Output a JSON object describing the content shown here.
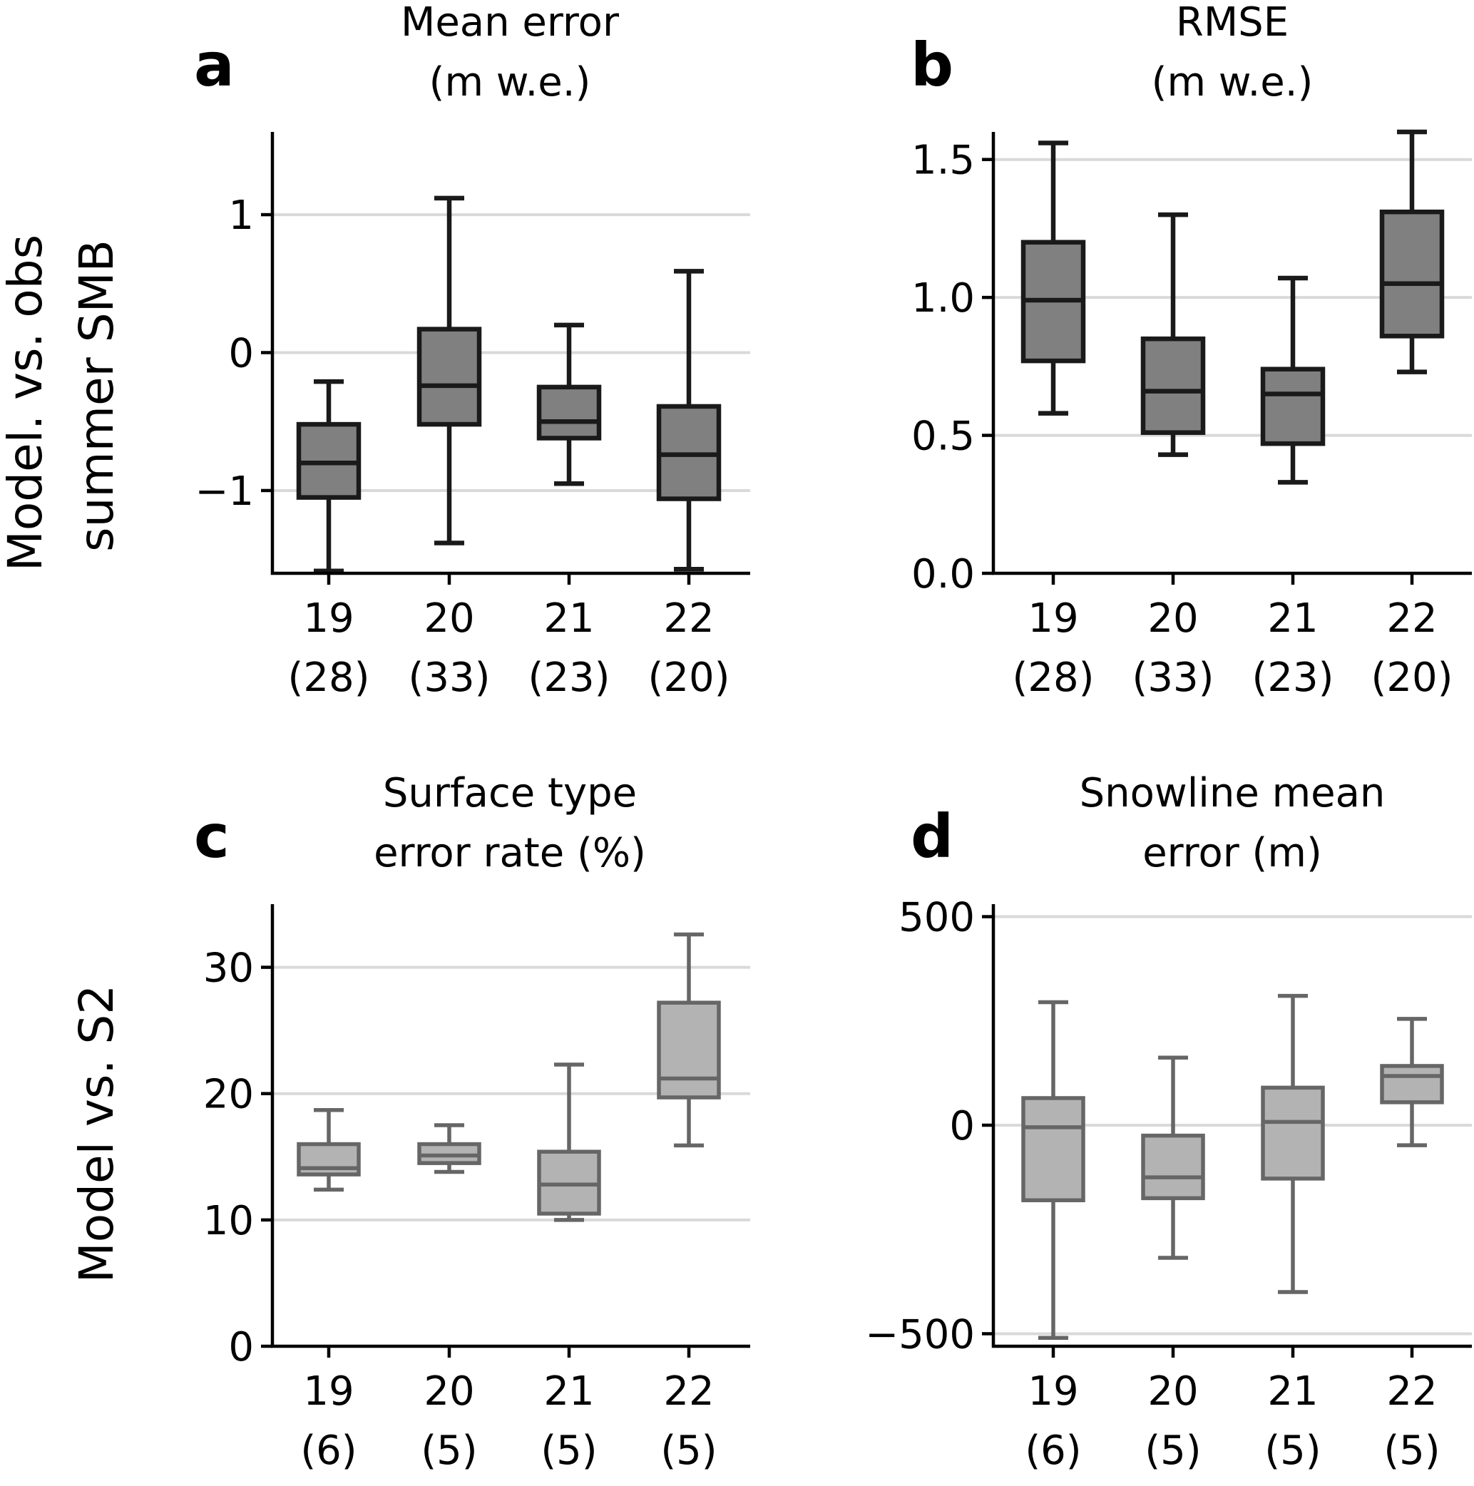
{
  "row_labels": {
    "top": [
      "Model. vs. obs",
      "summer SMB"
    ],
    "bottom": [
      "Model vs. S2"
    ]
  },
  "chart_data": [
    {
      "type": "box",
      "panel": "a",
      "title": [
        "Mean error",
        "(m w.e.)"
      ],
      "categories": [
        "19",
        "20",
        "21",
        "22"
      ],
      "counts": [
        "(28)",
        "(33)",
        "(23)",
        "(20)"
      ],
      "ylim": [
        -1.6,
        1.6
      ],
      "yticks": [
        -1,
        0,
        1
      ],
      "yticklabels": [
        "−1",
        "0",
        "1"
      ],
      "grid": "horizontal",
      "color": "#808080",
      "edge_color": "#1a1a1a",
      "boxes": [
        {
          "whisker_low": -1.6,
          "q1": -1.05,
          "median": -0.8,
          "q3": -0.52,
          "whisker_high": -0.21
        },
        {
          "whisker_low": -1.38,
          "q1": -0.52,
          "median": -0.24,
          "q3": 0.17,
          "whisker_high": 1.12
        },
        {
          "whisker_low": -0.95,
          "q1": -0.62,
          "median": -0.5,
          "q3": -0.25,
          "whisker_high": 0.2
        },
        {
          "whisker_low": -1.57,
          "q1": -1.06,
          "median": -0.74,
          "q3": -0.39,
          "whisker_high": 0.59
        }
      ]
    },
    {
      "type": "box",
      "panel": "b",
      "title": [
        "RMSE",
        "(m w.e.)"
      ],
      "categories": [
        "19",
        "20",
        "21",
        "22"
      ],
      "counts": [
        "(28)",
        "(33)",
        "(23)",
        "(20)"
      ],
      "ylim": [
        0,
        1.6
      ],
      "yticks": [
        0,
        0.5,
        1.0,
        1.5
      ],
      "yticklabels": [
        "0.0",
        "0.5",
        "1.0",
        "1.5"
      ],
      "grid": "horizontal",
      "color": "#808080",
      "edge_color": "#1a1a1a",
      "boxes": [
        {
          "whisker_low": 0.58,
          "q1": 0.77,
          "median": 0.99,
          "q3": 1.2,
          "whisker_high": 1.56
        },
        {
          "whisker_low": 0.43,
          "q1": 0.51,
          "median": 0.66,
          "q3": 0.85,
          "whisker_high": 1.3
        },
        {
          "whisker_low": 0.33,
          "q1": 0.47,
          "median": 0.65,
          "q3": 0.74,
          "whisker_high": 1.07
        },
        {
          "whisker_low": 0.73,
          "q1": 0.86,
          "median": 1.05,
          "q3": 1.31,
          "whisker_high": 1.6
        }
      ]
    },
    {
      "type": "box",
      "panel": "c",
      "title": [
        "Surface type",
        "error rate (%)"
      ],
      "categories": [
        "19",
        "20",
        "21",
        "22"
      ],
      "counts": [
        "(6)",
        "(5)",
        "(5)",
        "(5)"
      ],
      "ylim": [
        0,
        35
      ],
      "yticks": [
        0,
        10,
        20,
        30
      ],
      "yticklabels": [
        "0",
        "10",
        "20",
        "30"
      ],
      "grid": "horizontal",
      "color": "#b3b3b3",
      "edge_color": "#666666",
      "boxes": [
        {
          "whisker_low": 12.4,
          "q1": 13.6,
          "median": 14.1,
          "q3": 16.0,
          "whisker_high": 18.7
        },
        {
          "whisker_low": 13.8,
          "q1": 14.5,
          "median": 15.1,
          "q3": 16.0,
          "whisker_high": 17.5
        },
        {
          "whisker_low": 10.0,
          "q1": 10.5,
          "median": 12.8,
          "q3": 15.4,
          "whisker_high": 22.3
        },
        {
          "whisker_low": 15.9,
          "q1": 19.7,
          "median": 21.2,
          "q3": 27.2,
          "whisker_high": 32.6
        }
      ]
    },
    {
      "type": "box",
      "panel": "d",
      "title": [
        "Snowline mean",
        "error (m)"
      ],
      "categories": [
        "19",
        "20",
        "21",
        "22"
      ],
      "counts": [
        "(6)",
        "(5)",
        "(5)",
        "(5)"
      ],
      "ylim": [
        -530,
        530
      ],
      "yticks": [
        -500,
        0,
        500
      ],
      "yticklabels": [
        "−500",
        "0",
        "500"
      ],
      "grid": "horizontal",
      "color": "#b3b3b3",
      "edge_color": "#666666",
      "boxes": [
        {
          "whisker_low": -510,
          "q1": -180,
          "median": -5,
          "q3": 65,
          "whisker_high": 295
        },
        {
          "whisker_low": -318,
          "q1": -175,
          "median": -125,
          "q3": -25,
          "whisker_high": 162
        },
        {
          "whisker_low": -400,
          "q1": -128,
          "median": 8,
          "q3": 90,
          "whisker_high": 310
        },
        {
          "whisker_low": -48,
          "q1": 55,
          "median": 118,
          "q3": 142,
          "whisker_high": 255
        }
      ]
    }
  ]
}
